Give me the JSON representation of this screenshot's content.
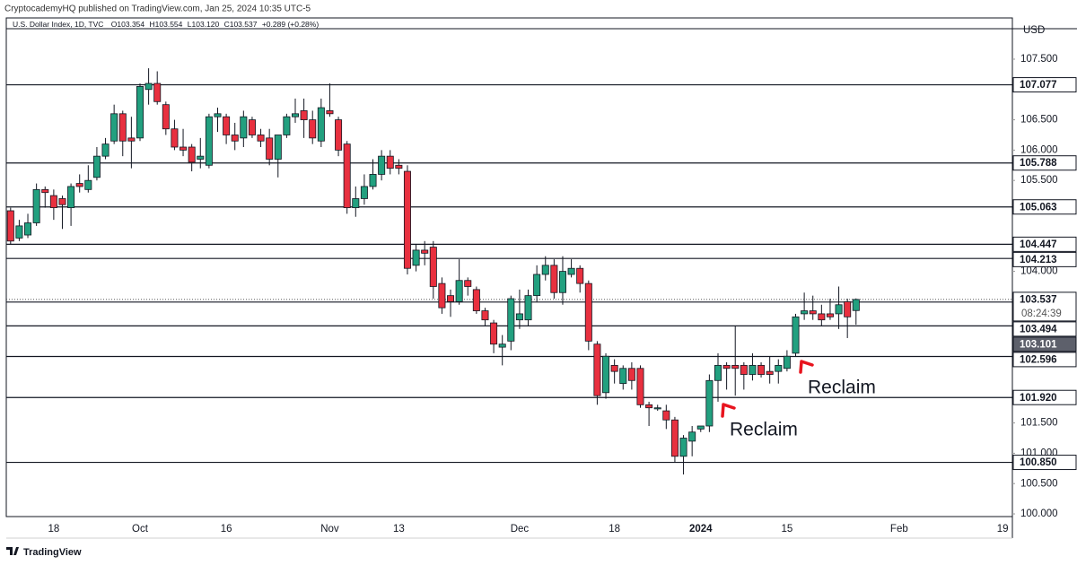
{
  "header": {
    "publisher": "CryptocademyHQ published on TradingView.com, Jan 25, 2024 10:35 UTC-5"
  },
  "footer": {
    "brand": "TradingView"
  },
  "chart_data": {
    "type": "candlestick",
    "title": "U.S. Dollar Index, 1D, TVC",
    "ohlc_legend": [
      "O103.354",
      "H103.554",
      "L103.120",
      "C103.537",
      "+0.289 (+0.28%)"
    ],
    "currency": "USD",
    "up_color": "#22a07f",
    "down_color": "#e8303f",
    "categories": [
      null,
      null,
      null,
      null,
      null,
      "18",
      null,
      null,
      null,
      null,
      null,
      null,
      null,
      null,
      null,
      "Oct",
      null,
      null,
      null,
      null,
      null,
      null,
      null,
      null,
      null,
      "16",
      null,
      null,
      null,
      null,
      null,
      null,
      null,
      null,
      null,
      null,
      null,
      "Nov",
      null,
      null,
      null,
      null,
      null,
      null,
      null,
      "13",
      null,
      null,
      null,
      null,
      null,
      null,
      null,
      null,
      null,
      null,
      null,
      null,
      null,
      "Dec",
      null,
      null,
      null,
      null,
      null,
      null,
      null,
      null,
      null,
      null,
      "18",
      null,
      null,
      null,
      null,
      null,
      null,
      null,
      null,
      null,
      "2024",
      null,
      null,
      null,
      null,
      null,
      null,
      null,
      null,
      null,
      "15",
      null,
      null,
      null,
      null,
      null,
      null,
      null,
      null,
      null,
      null,
      null,
      null,
      "Feb",
      null,
      null,
      null,
      null,
      null,
      null,
      null,
      null,
      null,
      null,
      null,
      "19"
    ],
    "open": [
      105.0,
      104.55,
      104.6,
      104.8,
      105.35,
      105.25,
      105.2,
      105.05,
      105.45,
      105.35,
      105.55,
      105.9,
      106.15,
      106.6,
      106.2,
      106.2,
      107.0,
      107.1,
      106.75,
      106.35,
      106.05,
      106.05,
      105.85,
      105.75,
      106.55,
      106.55,
      106.25,
      106.2,
      106.5,
      106.25,
      106.2,
      105.85,
      106.25,
      106.55,
      106.65,
      106.5,
      106.15,
      106.65,
      106.5,
      106.1,
      105.05,
      105.2,
      105.4,
      105.6,
      105.9,
      105.75,
      105.65,
      104.1,
      104.35,
      104.4,
      103.8,
      103.6,
      103.5,
      103.85,
      103.7,
      103.35,
      103.15,
      102.75,
      102.85,
      103.2,
      103.2,
      103.6,
      103.95,
      104.1,
      103.65,
      103.95,
      104.05,
      103.8,
      102.8,
      102.0,
      102.45,
      102.15,
      102.4,
      102.4,
      101.8,
      101.75,
      101.7,
      101.55,
      100.95,
      101.2,
      101.4,
      101.45,
      102.2,
      102.45,
      102.45,
      102.45,
      102.3,
      102.45,
      102.35,
      102.35,
      102.4,
      102.65,
      103.3,
      103.35,
      103.3,
      103.3,
      103.3,
      103.5,
      103.354,
      null,
      null,
      null,
      null,
      null,
      null,
      null,
      null,
      null,
      null,
      null,
      null,
      null,
      null,
      null,
      null,
      null
    ],
    "high": [
      105.05,
      104.85,
      104.95,
      105.45,
      105.4,
      105.35,
      105.25,
      105.45,
      105.6,
      105.75,
      106.05,
      106.2,
      106.75,
      106.65,
      106.55,
      107.1,
      107.35,
      107.3,
      106.8,
      106.5,
      106.35,
      106.1,
      106.2,
      106.6,
      106.7,
      106.6,
      106.45,
      106.65,
      106.55,
      106.35,
      106.35,
      106.25,
      106.6,
      106.85,
      106.85,
      106.65,
      106.85,
      107.1,
      106.55,
      106.15,
      105.4,
      105.6,
      105.85,
      106.0,
      106.0,
      105.85,
      105.75,
      104.45,
      104.5,
      104.5,
      103.9,
      103.7,
      104.2,
      103.9,
      103.75,
      103.4,
      103.2,
      102.95,
      103.6,
      103.7,
      103.7,
      104.1,
      104.25,
      104.2,
      104.25,
      104.2,
      104.1,
      103.85,
      102.85,
      102.65,
      102.55,
      102.45,
      102.5,
      102.45,
      101.85,
      101.8,
      101.8,
      101.6,
      101.3,
      101.45,
      101.45,
      102.3,
      102.65,
      102.5,
      103.1,
      102.5,
      102.65,
      102.5,
      102.6,
      102.55,
      102.7,
      103.3,
      103.65,
      103.6,
      103.45,
      103.55,
      103.75,
      103.55,
      103.554,
      null,
      null,
      null,
      null,
      null,
      null,
      null,
      null,
      null,
      null,
      null,
      null,
      null,
      null,
      null,
      null,
      null
    ],
    "low": [
      104.45,
      104.5,
      104.55,
      104.75,
      105.05,
      104.85,
      104.7,
      104.75,
      105.3,
      105.3,
      105.5,
      105.85,
      106.1,
      105.9,
      105.7,
      106.15,
      106.75,
      106.75,
      106.25,
      106.0,
      105.9,
      105.65,
      105.7,
      105.7,
      106.3,
      106.1,
      106.0,
      106.05,
      106.2,
      106.05,
      105.75,
      105.55,
      106.2,
      106.45,
      106.2,
      106.1,
      106.05,
      106.55,
      105.9,
      104.95,
      104.9,
      105.1,
      105.35,
      105.5,
      105.6,
      105.6,
      103.95,
      104.0,
      104.1,
      103.55,
      103.3,
      103.25,
      103.45,
      103.6,
      103.3,
      103.1,
      102.65,
      102.45,
      102.7,
      103.05,
      103.1,
      103.5,
      103.85,
      103.55,
      103.45,
      103.9,
      103.65,
      102.7,
      101.8,
      101.9,
      102.15,
      102.05,
      102.05,
      101.75,
      101.45,
      101.7,
      101.4,
      100.85,
      100.65,
      100.95,
      101.35,
      101.35,
      101.85,
      102.05,
      101.95,
      102.05,
      102.2,
      102.25,
      102.15,
      102.15,
      102.35,
      102.6,
      103.2,
      103.2,
      103.1,
      103.2,
      103.05,
      102.9,
      103.12,
      null,
      null,
      null,
      null,
      null,
      null,
      null,
      null,
      null,
      null,
      null,
      null,
      null,
      null,
      null,
      null,
      null
    ],
    "close": [
      104.5,
      104.75,
      104.8,
      105.35,
      105.3,
      105.05,
      105.1,
      105.4,
      105.4,
      105.5,
      105.9,
      106.1,
      106.6,
      106.15,
      106.15,
      107.05,
      107.1,
      106.8,
      106.35,
      106.05,
      106.0,
      105.8,
      105.9,
      106.55,
      106.6,
      106.25,
      106.15,
      106.55,
      106.25,
      106.15,
      105.85,
      106.25,
      106.55,
      106.6,
      106.5,
      106.2,
      106.7,
      106.6,
      106.0,
      105.05,
      105.2,
      105.4,
      105.6,
      105.9,
      105.7,
      105.7,
      104.05,
      104.35,
      104.3,
      103.75,
      103.4,
      103.5,
      103.85,
      103.75,
      103.35,
      103.2,
      102.8,
      102.8,
      103.55,
      103.3,
      103.6,
      103.95,
      104.1,
      103.65,
      104.0,
      104.05,
      103.8,
      102.85,
      101.95,
      102.6,
      102.35,
      102.4,
      102.2,
      101.8,
      101.75,
      101.75,
      101.55,
      100.95,
      101.25,
      101.35,
      101.45,
      102.2,
      102.45,
      102.4,
      102.4,
      102.3,
      102.45,
      102.3,
      102.3,
      102.45,
      102.6,
      103.25,
      103.35,
      103.3,
      103.2,
      103.25,
      103.45,
      103.25,
      103.537,
      null,
      null,
      null,
      null,
      null,
      null,
      null,
      null,
      null,
      null,
      null,
      null,
      null,
      null,
      null,
      null,
      null
    ],
    "ylim": [
      99.956,
      108.18
    ],
    "yticks": [
      {
        "value": 100,
        "label": "100.000"
      },
      {
        "value": 100.5,
        "label": "100.500"
      },
      {
        "value": 101,
        "label": "101.000"
      },
      {
        "value": 101.5,
        "label": "101.500"
      },
      {
        "value": 104,
        "label": "104.000"
      },
      {
        "value": 105.5,
        "label": "105.500"
      },
      {
        "value": 106,
        "label": "106.000"
      },
      {
        "value": 106.5,
        "label": "106.500"
      },
      {
        "value": 107.5,
        "label": "107.500"
      }
    ],
    "levels": [
      107.077,
      105.788,
      105.063,
      104.447,
      104.213,
      103.494,
      103.101,
      102.596,
      {
        "value": 101.92,
        "label": "101.920"
      },
      {
        "value": 100.85,
        "label": "100.850"
      }
    ],
    "level_box_colors": [
      "#ffffff",
      "#ffffff",
      "#ffffff",
      "#ffffff",
      "#ffffff",
      "#ffffff",
      "#5d606b",
      "#ffffff",
      "#ffffff",
      "#ffffff"
    ],
    "last_price": 103.537,
    "countdown": "08:24:39",
    "annotations": [
      "Reclaim",
      "Reclaim"
    ],
    "annotation_color": "#e8141e"
  }
}
